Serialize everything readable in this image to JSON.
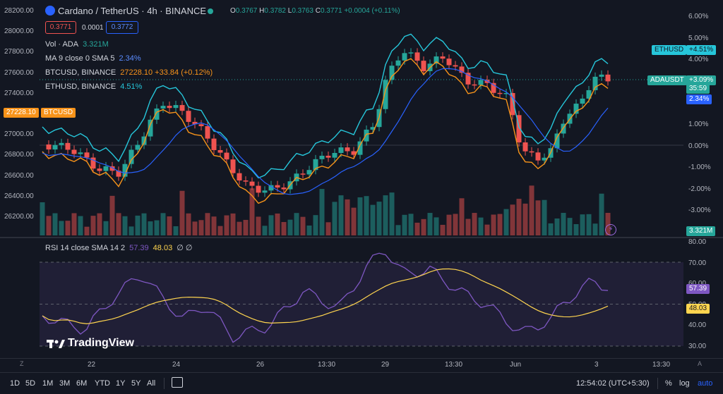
{
  "header": {
    "symbol": "Cardano / TetherUS · 4h · BINANCE",
    "ohlc": {
      "o_label": "O",
      "o": "0.3767",
      "h_label": "H",
      "h": "0.3782",
      "l_label": "L",
      "l": "0.3763",
      "c_label": "C",
      "c": "0.3771",
      "change": "+0.0004 (+0.11%)"
    },
    "bid": "0.3771",
    "spread": "0.0001",
    "ask": "0.3772"
  },
  "legend": {
    "vol": {
      "label": "Vol · ADA",
      "value": "3.321M"
    },
    "ma": {
      "label": "MA 9 close 0 SMA 5",
      "value": "2.34%"
    },
    "btc": {
      "label": "BTCUSD, BINANCE",
      "value": "27228.10 +33.84 (+0.12%)"
    },
    "eth": {
      "label": "ETHUSD, BINANCE",
      "value": "4.51%"
    }
  },
  "left_axis": [
    "28200.00",
    "28000.00",
    "27800.00",
    "27600.00",
    "27400.00",
    "27200.00",
    "27000.00",
    "26800.00",
    "26600.00",
    "26400.00",
    "26200.00"
  ],
  "right_axis": [
    "6.00%",
    "5.00%",
    "4.00%",
    "3.00%",
    "2.00%",
    "1.00%",
    "0.00%",
    "-1.00%",
    "-2.00%",
    "-3.00%"
  ],
  "rsi_axis": [
    "80.00",
    "70.00",
    "60.00",
    "50.00",
    "40.00",
    "30.00"
  ],
  "pills": {
    "btc_price": "27228.10",
    "btc_sym": "BTCUSD",
    "eth": "ETHUSD",
    "eth_val": "+4.51%",
    "ada": "ADAUSDT",
    "ada_val": "+3.09%",
    "countdown": "35:59",
    "ma_val": "2.34%",
    "vol_val": "3.321M",
    "rsi_val": "57.39",
    "rsi_sma_val": "48.03"
  },
  "rsi_legend": {
    "label": "RSI 14 close SMA 14 2",
    "rsi": "57.39",
    "sma": "48.03",
    "extra": "∅ ∅"
  },
  "logo": "TradingView",
  "time_axis": [
    "22",
    "24",
    "26",
    "13:30",
    "29",
    "13:30",
    "Jun",
    "3",
    "13:30"
  ],
  "toolbar": {
    "ranges": [
      "1D",
      "5D",
      "1M",
      "3M",
      "6M",
      "YTD",
      "1Y",
      "5Y",
      "All"
    ],
    "clock": "12:54:02 (UTC+5:30)",
    "percent": "%",
    "log": "log",
    "auto": "auto"
  },
  "colors": {
    "up": "#26a69a",
    "down": "#ef5350",
    "btc": "#f7931a",
    "eth": "#26c6da",
    "ma": "#2962ff",
    "rsi": "#7e57c2",
    "rsi_sma": "#ffd54f"
  }
}
